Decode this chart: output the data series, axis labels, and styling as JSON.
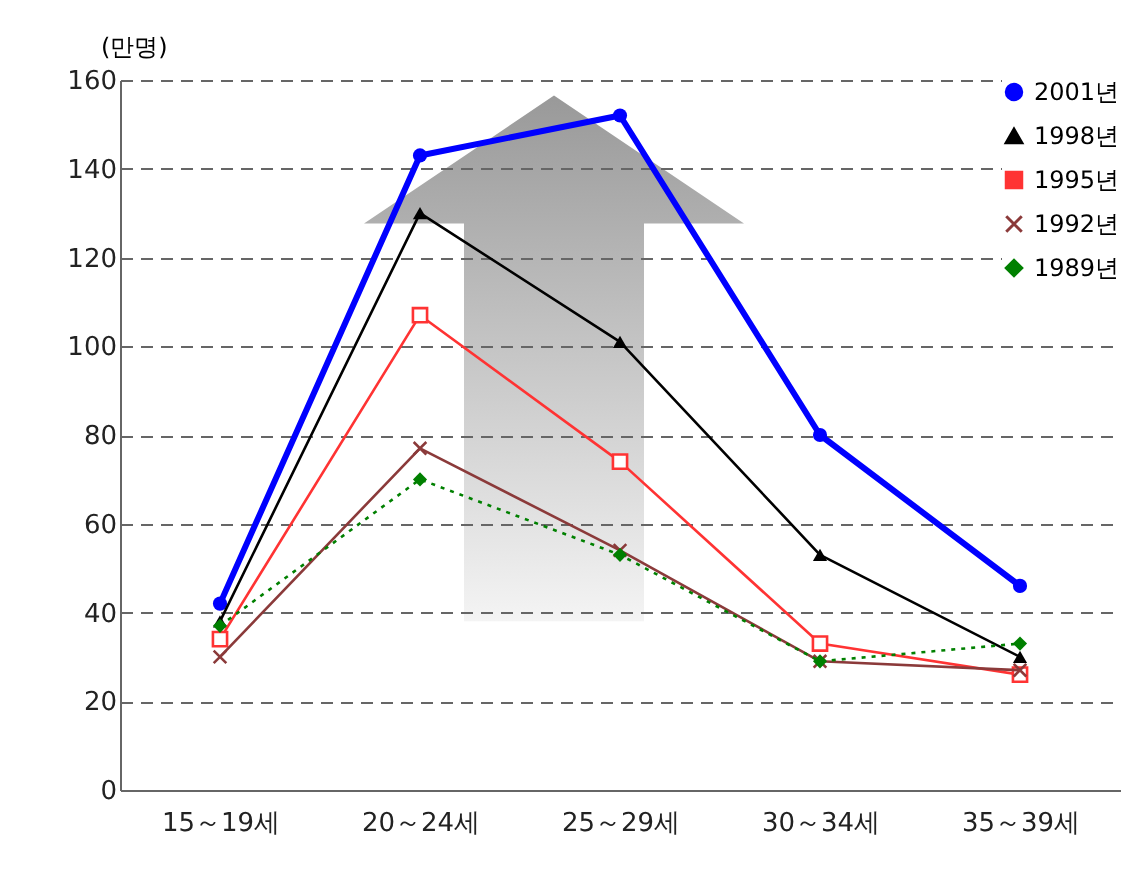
{
  "chart_data": {
    "type": "line",
    "ylabel": "(만명)",
    "categories": [
      "15～19세",
      "20～24세",
      "25～29세",
      "30～34세",
      "35～39세"
    ],
    "series": [
      {
        "name": "2001년",
        "color": "#0000ff",
        "marker": "circle",
        "values": [
          42,
          143,
          152,
          80,
          46
        ]
      },
      {
        "name": "1998년",
        "color": "#000000",
        "marker": "triangle",
        "values": [
          38,
          130,
          101,
          53,
          30
        ]
      },
      {
        "name": "1995년",
        "color": "#ff3333",
        "marker": "square",
        "values": [
          34,
          107,
          74,
          33,
          26
        ]
      },
      {
        "name": "1992년",
        "color": "#8b3a3a",
        "marker": "cross",
        "values": [
          30,
          77,
          54,
          29,
          27
        ]
      },
      {
        "name": "1989년",
        "color": "#008000",
        "marker": "diamond",
        "line_style": "dotted",
        "values": [
          37,
          70,
          53,
          29,
          33
        ]
      }
    ],
    "ylim": [
      0,
      160
    ],
    "yticks": [
      0,
      20,
      40,
      60,
      80,
      100,
      120,
      140,
      160
    ],
    "grid": "y",
    "legend": "top right"
  }
}
